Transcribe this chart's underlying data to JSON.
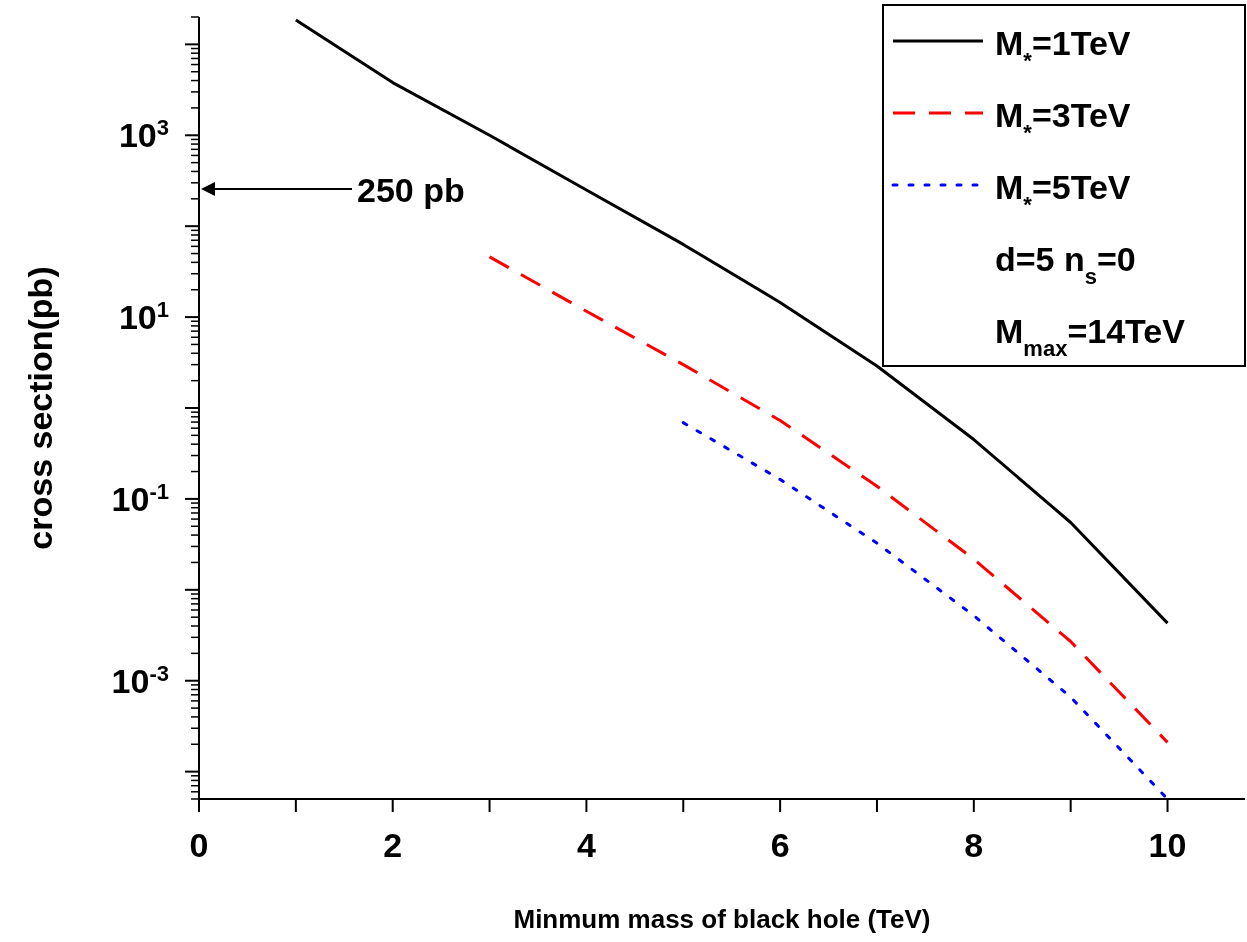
{
  "chart_data": {
    "type": "line",
    "xlabel": "Minmum mass of black hole (TeV)",
    "ylabel": "cross section(pb)",
    "log": "y",
    "legend": "top right",
    "marker": "none",
    "grid": false,
    "xlim": [
      0,
      10.8
    ],
    "xticks": [
      0,
      {
        "value": 1,
        "label": null
      },
      2,
      {
        "value": 3,
        "label": null
      },
      4,
      {
        "value": 5,
        "label": null
      },
      6,
      {
        "value": 7,
        "label": null
      },
      8,
      {
        "value": 9,
        "label": null
      },
      10
    ],
    "ylim": [
      5e-05,
      20000
    ],
    "yticks": [
      {
        "value": 0.0001,
        "label": null
      },
      {
        "value": 0.001,
        "label": "10$^{-3}$"
      },
      {
        "value": 0.01,
        "label": null
      },
      {
        "value": 0.1,
        "label": "10$^{-1}$"
      },
      {
        "value": 1,
        "label": null
      },
      {
        "value": 10,
        "label": "10$^{1}$"
      },
      {
        "value": 100,
        "label": null
      },
      {
        "value": 1000,
        "label": "10$^{3}$"
      },
      {
        "value": 10000,
        "label": null
      }
    ],
    "series": [
      {
        "name": "M$_{*}$=1TeV",
        "color": "#000000",
        "line_style": "solid",
        "x": [
          1,
          2,
          3,
          4,
          5,
          6,
          7,
          8,
          9,
          10
        ],
        "values": [
          18500,
          3800,
          1000,
          250,
          63,
          14.5,
          2.9,
          0.45,
          0.055,
          0.0043
        ]
      },
      {
        "name": "M$_{*}$=3TeV",
        "color": "#ff0000",
        "line_style": "dashed",
        "x": [
          3,
          4,
          5,
          6,
          7,
          8,
          9,
          10
        ],
        "values": [
          46,
          11.6,
          3.0,
          0.73,
          0.138,
          0.0217,
          0.0027,
          0.00021
        ]
      },
      {
        "name": "M$_{*}$=5TeV",
        "color": "#0000ff",
        "line_style": "dotted",
        "x": [
          5,
          6,
          7,
          8,
          9,
          10
        ],
        "values": [
          0.69,
          0.164,
          0.0326,
          0.0052,
          0.00066,
          5e-05
        ]
      }
    ],
    "annotations": [
      "250 pb",
      "d=5  n$_{s}$=0",
      "M$_{max}$=14TeV"
    ]
  }
}
